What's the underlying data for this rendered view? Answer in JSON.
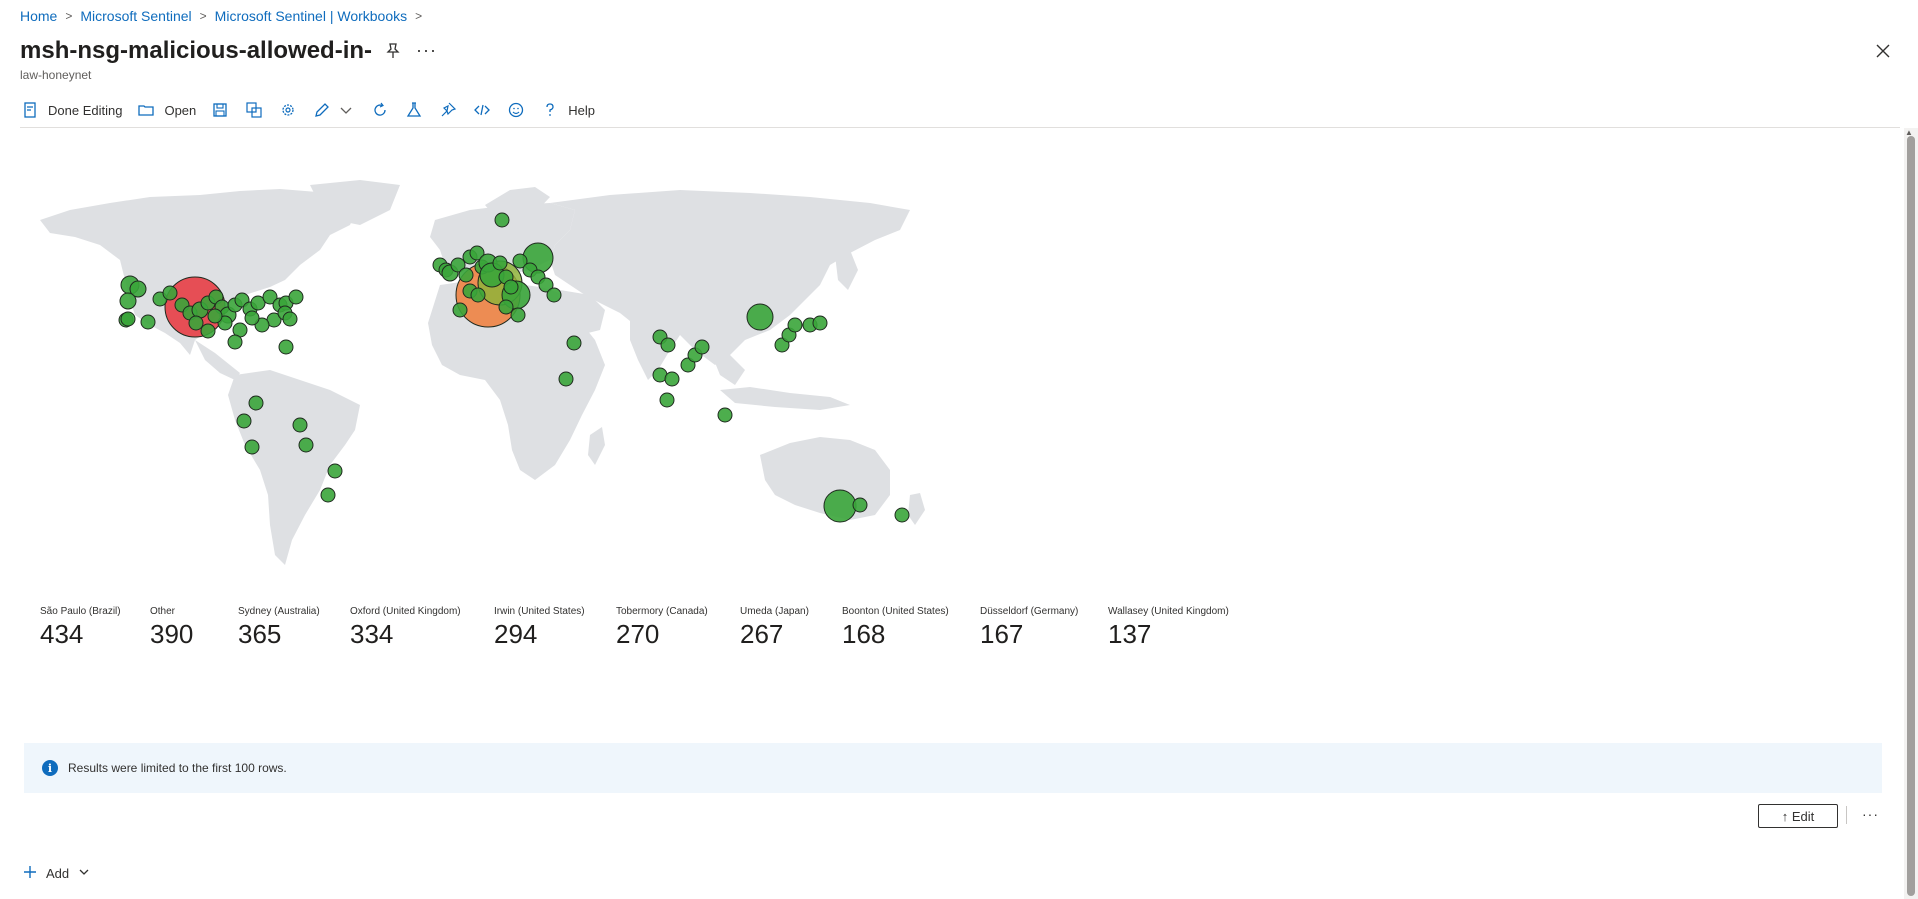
{
  "breadcrumb": {
    "items": [
      "Home",
      "Microsoft Sentinel",
      "Microsoft Sentinel | Workbooks"
    ],
    "separator": ">"
  },
  "page": {
    "title": "msh-nsg-malicious-allowed-in-",
    "subtitle": "law-honeynet",
    "more_label": "···"
  },
  "toolbar": {
    "done_editing_label": "Done Editing",
    "open_label": "Open",
    "help_label": "Help",
    "icons": [
      "document-edit-icon",
      "folder-open-icon",
      "save-icon",
      "save-as-icon",
      "settings-gear-icon",
      "pencil-edit-icon",
      "chevron-down-icon",
      "refresh-icon",
      "flask-icon",
      "pin-icon",
      "code-icon",
      "smiley-feedback-icon",
      "question-icon"
    ]
  },
  "map": {
    "bubble_colors": {
      "high": "#e8343c",
      "mid": "#f07d3a",
      "low": "#3aa53a",
      "mid_low": "#8fb33a"
    },
    "land_color": "#dee0e3"
  },
  "tiles": [
    {
      "label": "São Paulo (Brazil)",
      "value": "434"
    },
    {
      "label": "Other",
      "value": "390"
    },
    {
      "label": "Sydney (Australia)",
      "value": "365"
    },
    {
      "label": "Oxford (United Kingdom)",
      "value": "334"
    },
    {
      "label": "Irwin (United States)",
      "value": "294"
    },
    {
      "label": "Tobermory (Canada)",
      "value": "270"
    },
    {
      "label": "Umeda (Japan)",
      "value": "267"
    },
    {
      "label": "Boonton (United States)",
      "value": "168"
    },
    {
      "label": "Düsseldorf (Germany)",
      "value": "167"
    },
    {
      "label": "Wallasey (United Kingdom)",
      "value": "137"
    }
  ],
  "info": {
    "message": "Results were limited to the first 100 rows.",
    "icon": "i"
  },
  "edit": {
    "label": "↑ Edit",
    "more_label": "···"
  },
  "add": {
    "label": "Add"
  }
}
